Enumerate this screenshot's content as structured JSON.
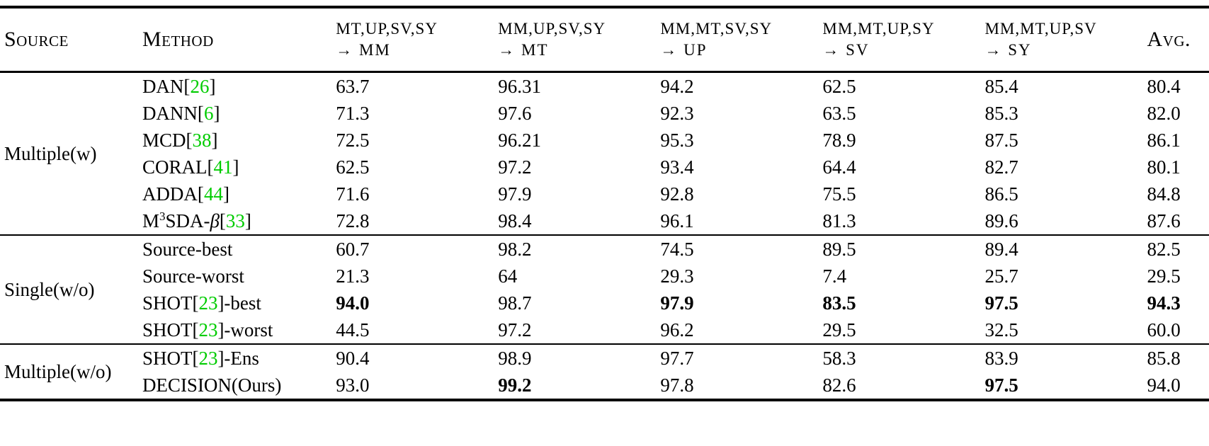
{
  "colors": {
    "citation_green": "#00cc00"
  },
  "table": {
    "header": {
      "source": "Source",
      "method": "Method",
      "transfer_cols": [
        {
          "sources": "MT,UP,SV,SY",
          "target": "→ MM"
        },
        {
          "sources": "MM,UP,SV,SY",
          "target": "→ MT"
        },
        {
          "sources": "MM,MT,SV,SY",
          "target": "→ UP"
        },
        {
          "sources": "MM,MT,UP,SY",
          "target": "→ SV"
        },
        {
          "sources": "MM,MT,UP,SV",
          "target": "→ SY"
        }
      ],
      "avg": "Avg."
    },
    "groups": [
      {
        "source": "Multiple(w)",
        "rows": [
          {
            "method": [
              {
                "t": "DAN["
              },
              {
                "cite": "26"
              },
              {
                "t": "]"
              }
            ],
            "cells": [
              {
                "v": "63.7"
              },
              {
                "v": "96.31"
              },
              {
                "v": "94.2"
              },
              {
                "v": "62.5"
              },
              {
                "v": "85.4"
              },
              {
                "v": "80.4"
              }
            ]
          },
          {
            "method": [
              {
                "t": "DANN["
              },
              {
                "cite": "6"
              },
              {
                "t": "]"
              }
            ],
            "cells": [
              {
                "v": "71.3"
              },
              {
                "v": "97.6"
              },
              {
                "v": "92.3"
              },
              {
                "v": "63.5"
              },
              {
                "v": "85.3"
              },
              {
                "v": "82.0"
              }
            ]
          },
          {
            "method": [
              {
                "t": "MCD["
              },
              {
                "cite": "38"
              },
              {
                "t": "]"
              }
            ],
            "cells": [
              {
                "v": "72.5"
              },
              {
                "v": "96.21"
              },
              {
                "v": "95.3"
              },
              {
                "v": "78.9"
              },
              {
                "v": "87.5"
              },
              {
                "v": "86.1"
              }
            ]
          },
          {
            "method": [
              {
                "t": "CORAL["
              },
              {
                "cite": "41"
              },
              {
                "t": "]"
              }
            ],
            "cells": [
              {
                "v": "62.5"
              },
              {
                "v": "97.2"
              },
              {
                "v": "93.4"
              },
              {
                "v": "64.4"
              },
              {
                "v": "82.7"
              },
              {
                "v": "80.1"
              }
            ]
          },
          {
            "method": [
              {
                "t": "ADDA["
              },
              {
                "cite": "44"
              },
              {
                "t": "]"
              }
            ],
            "cells": [
              {
                "v": "71.6"
              },
              {
                "v": "97.9"
              },
              {
                "v": "92.8"
              },
              {
                "v": "75.5"
              },
              {
                "v": "86.5"
              },
              {
                "v": "84.8"
              }
            ]
          },
          {
            "method": [
              {
                "t": "M"
              },
              {
                "sup": "3"
              },
              {
                "t": "SDA-"
              },
              {
                "i": "β"
              },
              {
                "t": "["
              },
              {
                "cite": "33"
              },
              {
                "t": "]"
              }
            ],
            "cells": [
              {
                "v": "72.8"
              },
              {
                "v": "98.4"
              },
              {
                "v": "96.1"
              },
              {
                "v": "81.3"
              },
              {
                "v": "89.6"
              },
              {
                "v": "87.6"
              }
            ]
          }
        ]
      },
      {
        "source": "Single(w/o)",
        "rows": [
          {
            "method": [
              {
                "t": "Source-best"
              }
            ],
            "cells": [
              {
                "v": "60.7"
              },
              {
                "v": "98.2"
              },
              {
                "v": "74.5"
              },
              {
                "v": "89.5"
              },
              {
                "v": "89.4"
              },
              {
                "v": "82.5"
              }
            ]
          },
          {
            "method": [
              {
                "t": "Source-worst"
              }
            ],
            "cells": [
              {
                "v": "21.3"
              },
              {
                "v": "64"
              },
              {
                "v": "29.3"
              },
              {
                "v": "7.4"
              },
              {
                "v": "25.7"
              },
              {
                "v": "29.5"
              }
            ]
          },
          {
            "method": [
              {
                "t": "SHOT["
              },
              {
                "cite": "23"
              },
              {
                "t": "]-best"
              }
            ],
            "cells": [
              {
                "v": "94.0",
                "bold": true
              },
              {
                "v": "98.7"
              },
              {
                "v": "97.9",
                "bold": true
              },
              {
                "v": "83.5",
                "bold": true
              },
              {
                "v": "97.5",
                "bold": true
              },
              {
                "v": "94.3",
                "bold": true
              }
            ]
          },
          {
            "method": [
              {
                "t": "SHOT["
              },
              {
                "cite": "23"
              },
              {
                "t": "]-worst"
              }
            ],
            "cells": [
              {
                "v": "44.5"
              },
              {
                "v": "97.2"
              },
              {
                "v": "96.2"
              },
              {
                "v": "29.5"
              },
              {
                "v": "32.5"
              },
              {
                "v": "60.0"
              }
            ]
          }
        ]
      },
      {
        "source": "Multiple(w/o)",
        "rows": [
          {
            "method": [
              {
                "t": "SHOT["
              },
              {
                "cite": "23"
              },
              {
                "t": "]-Ens"
              }
            ],
            "cells": [
              {
                "v": "90.4"
              },
              {
                "v": "98.9"
              },
              {
                "v": "97.7"
              },
              {
                "v": "58.3"
              },
              {
                "v": "83.9"
              },
              {
                "v": "85.8"
              }
            ]
          },
          {
            "method": [
              {
                "t": "DECISION(Ours)"
              }
            ],
            "cells": [
              {
                "v": "93.0"
              },
              {
                "v": "99.2",
                "bold": true
              },
              {
                "v": "97.8"
              },
              {
                "v": "82.6"
              },
              {
                "v": "97.5",
                "bold": true
              },
              {
                "v": "94.0"
              }
            ]
          }
        ]
      }
    ]
  }
}
